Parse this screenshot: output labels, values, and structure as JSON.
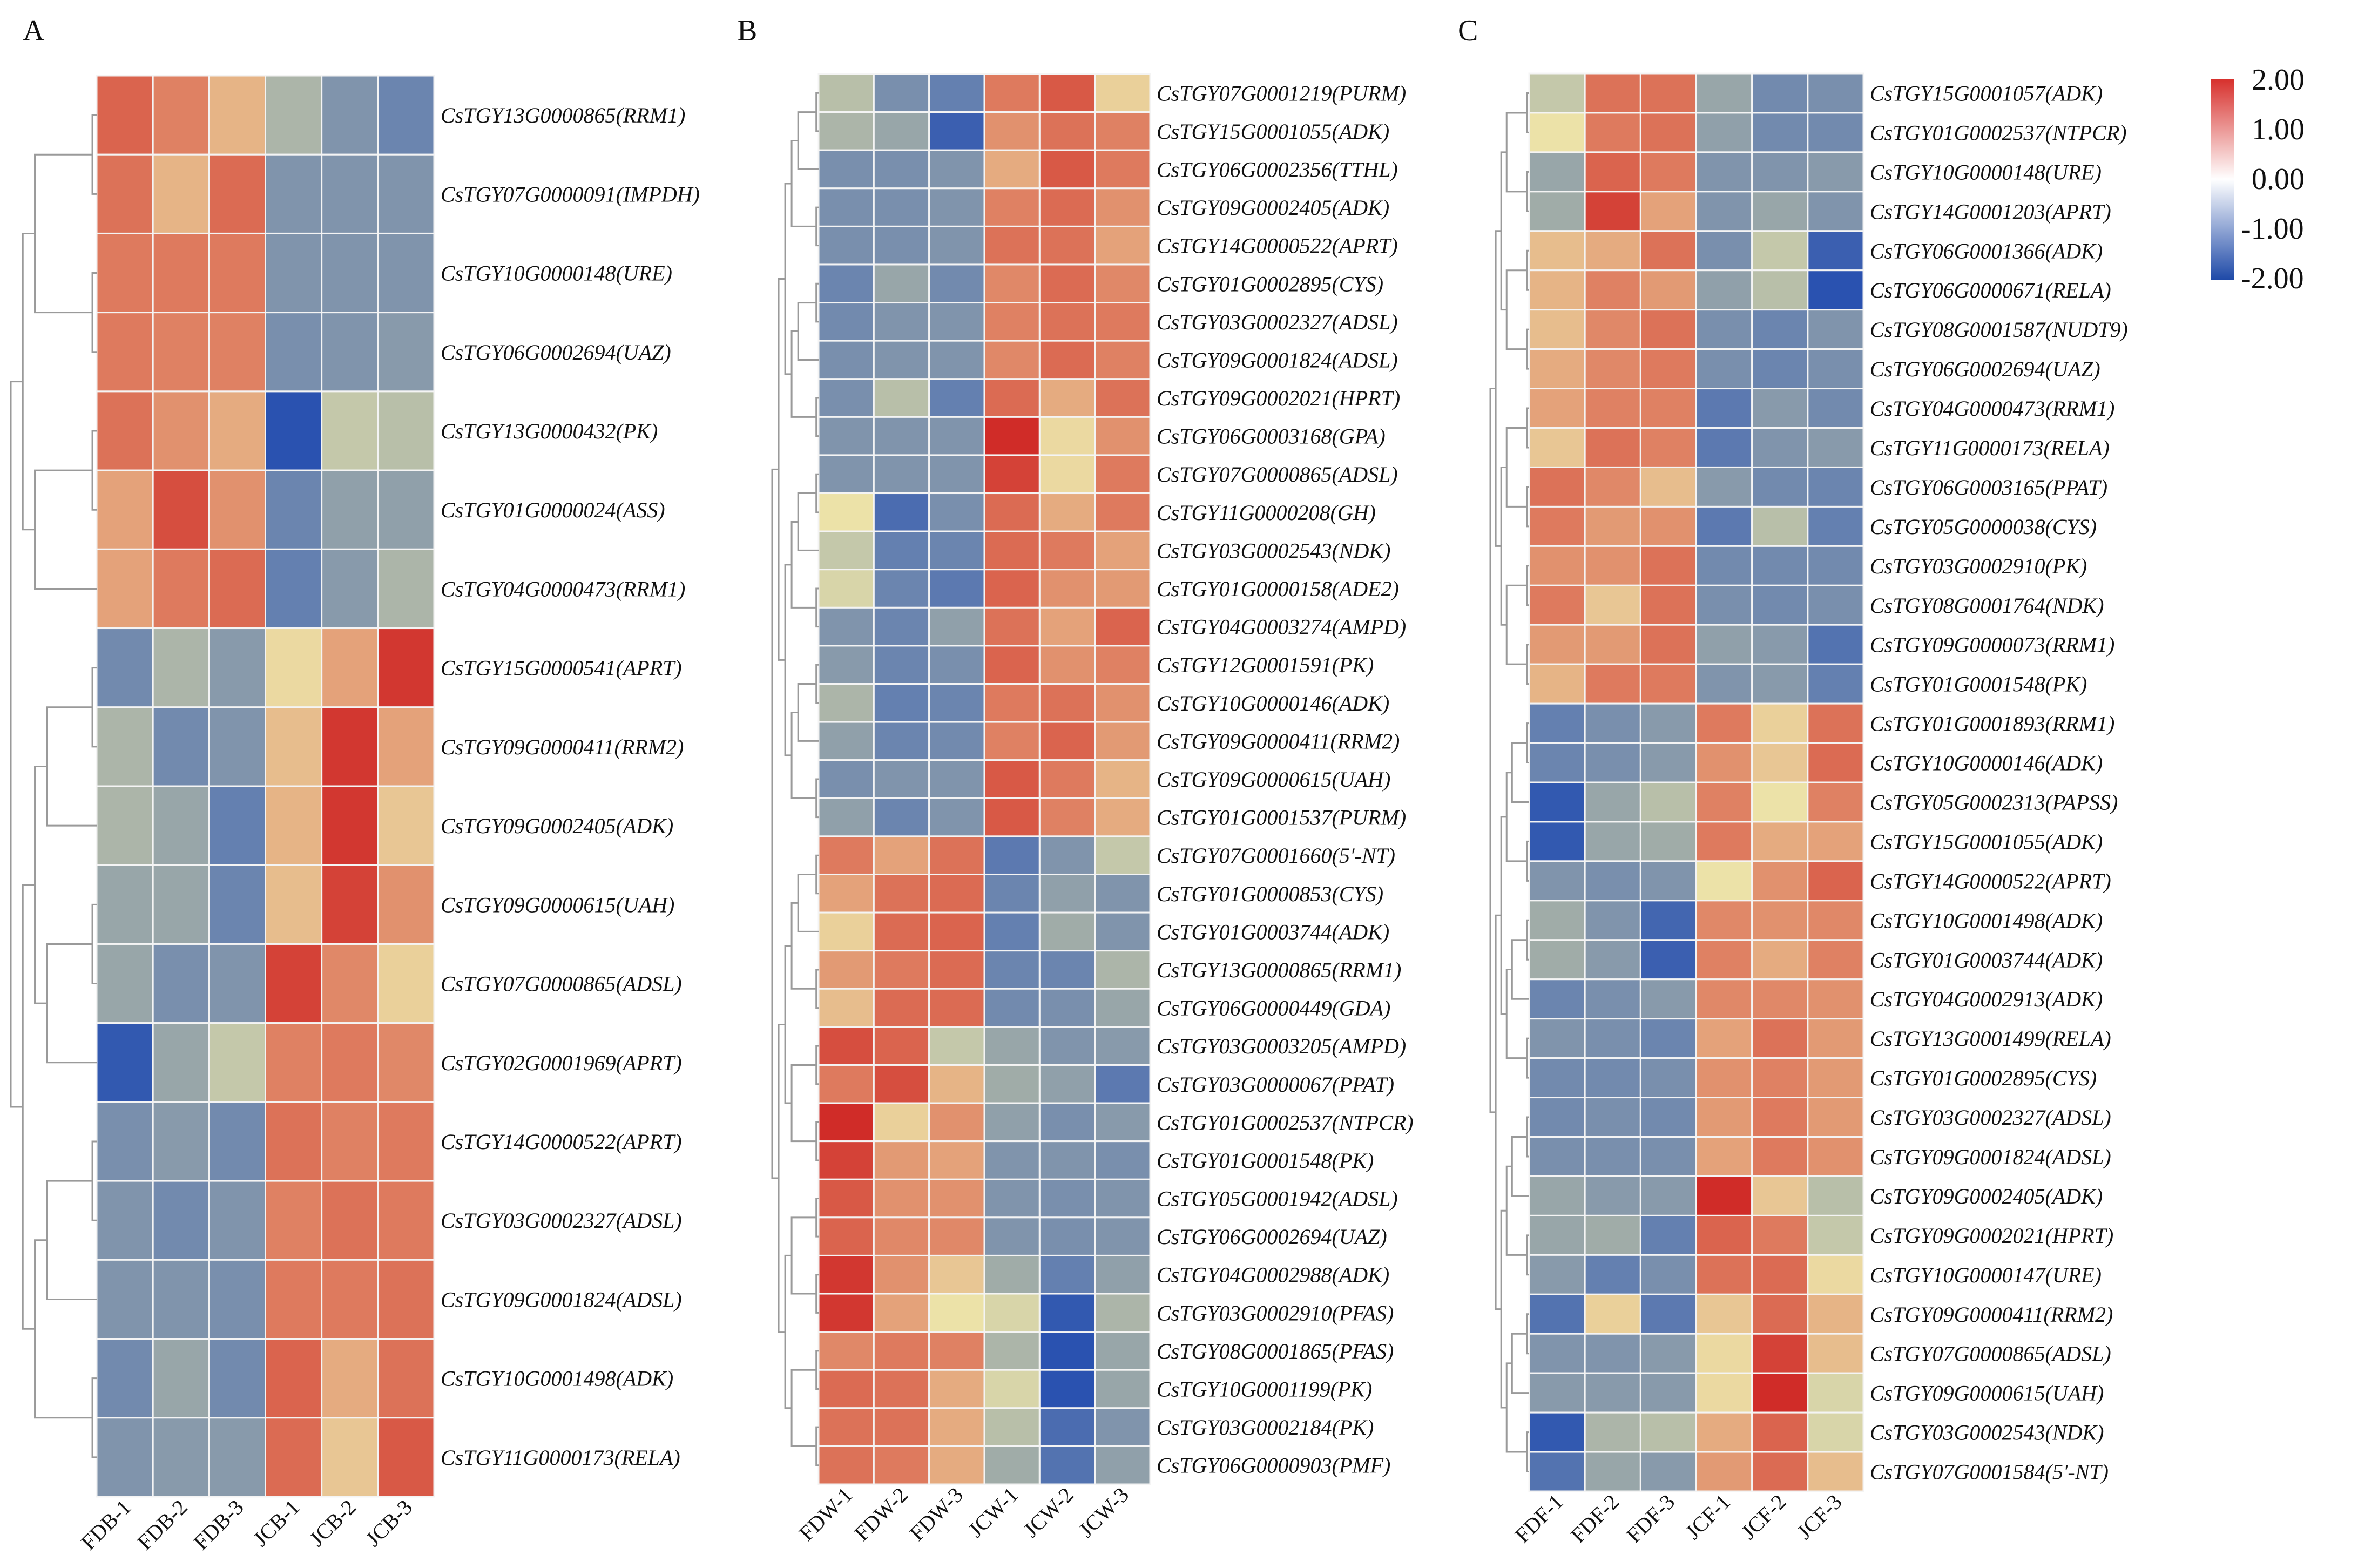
{
  "colorbar": {
    "min": -2,
    "max": 2,
    "ticks": [
      "2.00",
      "1.00",
      "0.00",
      "-1.00",
      "-2.00"
    ],
    "colors": {
      "high": "#d7302c",
      "mid": "#ffffff",
      "low": "#1f4aa8"
    }
  },
  "chart_data": [
    {
      "type": "heatmap",
      "panel": "A",
      "columns": [
        "FDB-1",
        "FDB-2",
        "FDB-3",
        "JCB-1",
        "JCB-2",
        "JCB-3"
      ],
      "rows": [
        "CsTGY13G0000865(RRM1)",
        "CsTGY07G0000091(IMPDH)",
        "CsTGY10G0000148(URE)",
        "CsTGY06G0002694(UAZ)",
        "CsTGY13G0000432(PK)",
        "CsTGY01G0000024(ASS)",
        "CsTGY04G0000473(RRM1)",
        "CsTGY15G0000541(APRT)",
        "CsTGY09G0000411(RRM2)",
        "CsTGY09G0002405(ADK)",
        "CsTGY09G0000615(UAH)",
        "CsTGY07G0000865(ADSL)",
        "CsTGY02G0001969(APRT)",
        "CsTGY14G0000522(APRT)",
        "CsTGY03G0002327(ADSL)",
        "CsTGY09G0001824(ADSL)",
        "CsTGY10G0001498(ADK)",
        "CsTGY11G0000173(RELA)"
      ],
      "split": 7,
      "values": [
        [
          1.5,
          1.1,
          0.5,
          -0.4,
          -0.9,
          -1.2
        ],
        [
          1.3,
          0.5,
          1.4,
          -0.9,
          -0.9,
          -0.9
        ],
        [
          1.2,
          1.2,
          1.2,
          -0.9,
          -0.9,
          -0.9
        ],
        [
          1.2,
          1.1,
          1.1,
          -1.0,
          -0.9,
          -0.8
        ],
        [
          1.3,
          0.9,
          0.6,
          -2.0,
          -0.2,
          -0.3
        ],
        [
          0.7,
          1.7,
          0.9,
          -1.2,
          -0.7,
          -0.7
        ],
        [
          0.7,
          1.2,
          1.4,
          -1.3,
          -0.8,
          -0.4
        ],
        [
          -1.1,
          -0.4,
          -0.8,
          0.1,
          0.7,
          1.9
        ],
        [
          -0.4,
          -1.1,
          -0.9,
          0.4,
          1.9,
          0.7
        ],
        [
          -0.4,
          -0.6,
          -1.3,
          0.5,
          1.9,
          0.3
        ],
        [
          -0.6,
          -0.6,
          -1.2,
          0.4,
          1.8,
          0.9
        ],
        [
          -0.6,
          -1.0,
          -0.9,
          1.8,
          1.0,
          0.2
        ],
        [
          -1.9,
          -0.6,
          -0.2,
          1.1,
          1.2,
          1.0
        ],
        [
          -1.0,
          -0.8,
          -1.1,
          1.3,
          1.1,
          1.2
        ],
        [
          -0.9,
          -1.1,
          -0.9,
          1.1,
          1.3,
          1.2
        ],
        [
          -0.9,
          -0.9,
          -1.0,
          1.2,
          1.2,
          1.3
        ],
        [
          -1.1,
          -0.6,
          -1.1,
          1.5,
          0.6,
          1.3
        ],
        [
          -0.9,
          -0.8,
          -0.8,
          1.4,
          0.3,
          1.6
        ]
      ]
    },
    {
      "type": "heatmap",
      "panel": "B",
      "columns": [
        "FDW-1",
        "FDW-2",
        "FDW-3",
        "JCW-1",
        "JCW-2",
        "JCW-3"
      ],
      "rows": [
        "CsTGY07G0001219(PURM)",
        "CsTGY15G0001055(ADK)",
        "CsTGY06G0002356(TTHL)",
        "CsTGY09G0002405(ADK)",
        "CsTGY14G0000522(APRT)",
        "CsTGY01G0002895(CYS)",
        "CsTGY03G0002327(ADSL)",
        "CsTGY09G0001824(ADSL)",
        "CsTGY09G0002021(HPRT)",
        "CsTGY06G0003168(GPA)",
        "CsTGY07G0000865(ADSL)",
        "CsTGY11G0000208(GH)",
        "CsTGY03G0002543(NDK)",
        "CsTGY01G0000158(ADE2)",
        "CsTGY04G0003274(AMPD)",
        "CsTGY12G0001591(PK)",
        "CsTGY10G0000146(ADK)",
        "CsTGY09G0000411(RRM2)",
        "CsTGY09G0000615(UAH)",
        "CsTGY01G0001537(PURM)",
        "CsTGY07G0001660(5'-NT)",
        "CsTGY01G0000853(CYS)",
        "CsTGY01G0003744(ADK)",
        "CsTGY13G0000865(RRM1)",
        "CsTGY06G0000449(GDA)",
        "CsTGY03G0003205(AMPD)",
        "CsTGY03G0000067(PPAT)",
        "CsTGY01G0002537(NTPCR)",
        "CsTGY01G0001548(PK)",
        "CsTGY05G0001942(ADSL)",
        "CsTGY06G0002694(UAZ)",
        "CsTGY04G0002988(ADK)",
        "CsTGY03G0002910(PFAS)",
        "CsTGY08G0001865(PFAS)",
        "CsTGY10G0001199(PK)",
        "CsTGY03G0002184(PK)",
        "CsTGY06G0000903(PMF)"
      ],
      "split": 20,
      "values": [
        [
          -0.3,
          -1.0,
          -1.3,
          1.2,
          1.6,
          0.2
        ],
        [
          -0.4,
          -0.6,
          -1.8,
          0.9,
          1.3,
          1.1
        ],
        [
          -1.0,
          -1.0,
          -0.9,
          0.6,
          1.6,
          1.2
        ],
        [
          -1.0,
          -1.0,
          -0.9,
          1.1,
          1.4,
          0.9
        ],
        [
          -1.0,
          -1.0,
          -0.9,
          1.3,
          1.3,
          0.7
        ],
        [
          -1.2,
          -0.6,
          -1.1,
          1.0,
          1.4,
          1.0
        ],
        [
          -1.1,
          -0.9,
          -0.9,
          1.1,
          1.3,
          1.2
        ],
        [
          -1.0,
          -0.9,
          -0.9,
          1.0,
          1.4,
          1.1
        ],
        [
          -1.0,
          -0.3,
          -1.3,
          1.4,
          0.6,
          1.3
        ],
        [
          -0.9,
          -0.9,
          -0.9,
          2.0,
          0.1,
          0.9
        ],
        [
          -0.9,
          -0.9,
          -0.9,
          1.8,
          0.1,
          1.2
        ],
        [
          0.0,
          -1.6,
          -1.0,
          1.4,
          0.6,
          1.2
        ],
        [
          -0.2,
          -1.3,
          -1.2,
          1.4,
          1.2,
          0.7
        ],
        [
          -0.1,
          -1.2,
          -1.4,
          1.5,
          0.9,
          0.8
        ],
        [
          -0.9,
          -1.2,
          -0.7,
          1.3,
          0.7,
          1.5
        ],
        [
          -0.8,
          -1.2,
          -1.0,
          1.5,
          0.9,
          1.1
        ],
        [
          -0.4,
          -1.3,
          -1.2,
          1.2,
          1.3,
          0.9
        ],
        [
          -0.7,
          -1.2,
          -1.1,
          1.1,
          1.5,
          0.8
        ],
        [
          -1.0,
          -0.9,
          -0.9,
          1.6,
          1.2,
          0.5
        ],
        [
          -0.7,
          -1.2,
          -0.9,
          1.6,
          1.1,
          0.6
        ],
        [
          1.2,
          0.7,
          1.3,
          -1.4,
          -0.9,
          -0.2
        ],
        [
          0.7,
          1.3,
          1.4,
          -1.2,
          -0.7,
          -0.9
        ],
        [
          0.2,
          1.4,
          1.5,
          -1.3,
          -0.5,
          -0.9
        ],
        [
          0.8,
          1.2,
          1.4,
          -1.2,
          -1.2,
          -0.4
        ],
        [
          0.4,
          1.4,
          1.4,
          -1.1,
          -1.0,
          -0.6
        ],
        [
          1.7,
          1.5,
          -0.2,
          -0.6,
          -0.9,
          -0.8
        ],
        [
          1.2,
          1.7,
          0.5,
          -0.5,
          -0.7,
          -1.4
        ],
        [
          2.0,
          0.2,
          0.9,
          -0.7,
          -1.0,
          -0.8
        ],
        [
          1.8,
          0.8,
          0.7,
          -0.9,
          -0.9,
          -1.0
        ],
        [
          1.6,
          0.9,
          0.9,
          -0.9,
          -1.0,
          -0.9
        ],
        [
          1.5,
          1.0,
          1.0,
          -0.9,
          -1.0,
          -0.9
        ],
        [
          1.9,
          0.9,
          0.3,
          -0.5,
          -1.3,
          -0.7
        ],
        [
          1.9,
          0.7,
          0.0,
          -0.1,
          -1.9,
          -0.4
        ],
        [
          1.0,
          1.2,
          1.1,
          -0.4,
          -2.0,
          -0.6
        ],
        [
          1.4,
          1.3,
          0.6,
          -0.1,
          -2.0,
          -0.6
        ],
        [
          1.3,
          1.3,
          0.6,
          -0.3,
          -1.6,
          -0.9
        ],
        [
          1.3,
          1.2,
          0.6,
          -0.5,
          -1.5,
          -0.7
        ]
      ]
    },
    {
      "type": "heatmap",
      "panel": "C",
      "columns": [
        "FDF-1",
        "FDF-2",
        "FDF-3",
        "JCF-1",
        "JCF-2",
        "JCF-3"
      ],
      "rows": [
        "CsTGY15G0001057(ADK)",
        "CsTGY01G0002537(NTPCR)",
        "CsTGY10G0000148(URE)",
        "CsTGY14G0001203(APRT)",
        "CsTGY06G0001366(ADK)",
        "CsTGY06G0000671(RELA)",
        "CsTGY08G0001587(NUDT9)",
        "CsTGY06G0002694(UAZ)",
        "CsTGY04G0000473(RRM1)",
        "CsTGY11G0000173(RELA)",
        "CsTGY06G0003165(PPAT)",
        "CsTGY05G0000038(CYS)",
        "CsTGY03G0002910(PK)",
        "CsTGY08G0001764(NDK)",
        "CsTGY09G0000073(RRM1)",
        "CsTGY01G0001548(PK)",
        "CsTGY01G0001893(RRM1)",
        "CsTGY10G0000146(ADK)",
        "CsTGY05G0002313(PAPSS)",
        "CsTGY15G0001055(ADK)",
        "CsTGY14G0000522(APRT)",
        "CsTGY10G0001498(ADK)",
        "CsTGY01G0003744(ADK)",
        "CsTGY04G0002913(ADK)",
        "CsTGY13G0001499(RELA)",
        "CsTGY01G0002895(CYS)",
        "CsTGY03G0002327(ADSL)",
        "CsTGY09G0001824(ADSL)",
        "CsTGY09G0002405(ADK)",
        "CsTGY09G0002021(HPRT)",
        "CsTGY10G0000147(URE)",
        "CsTGY09G0000411(RRM2)",
        "CsTGY07G0000865(ADSL)",
        "CsTGY09G0000615(UAH)",
        "CsTGY03G0002543(NDK)",
        "CsTGY07G0001584(5'-NT)"
      ],
      "split": 16,
      "values": [
        [
          -0.2,
          1.3,
          1.3,
          -0.6,
          -1.1,
          -1.0
        ],
        [
          0.0,
          1.2,
          1.3,
          -0.7,
          -1.1,
          -1.1
        ],
        [
          -0.6,
          1.5,
          1.2,
          -0.9,
          -0.9,
          -0.8
        ],
        [
          -0.5,
          1.8,
          0.7,
          -0.9,
          -0.6,
          -0.9
        ],
        [
          0.4,
          0.6,
          1.3,
          -1.0,
          -0.2,
          -1.8
        ],
        [
          0.5,
          1.1,
          0.8,
          -0.7,
          -0.3,
          -2.0
        ],
        [
          0.4,
          1.0,
          1.3,
          -1.0,
          -1.2,
          -0.9
        ],
        [
          0.6,
          1.0,
          1.2,
          -1.0,
          -1.2,
          -1.0
        ],
        [
          0.7,
          1.1,
          1.1,
          -1.4,
          -0.8,
          -1.1
        ],
        [
          0.3,
          1.3,
          1.1,
          -1.4,
          -0.9,
          -0.8
        ],
        [
          1.3,
          1.0,
          0.4,
          -0.8,
          -1.1,
          -1.2
        ],
        [
          1.2,
          0.8,
          0.9,
          -1.4,
          -0.3,
          -1.3
        ],
        [
          0.9,
          0.9,
          1.3,
          -1.1,
          -1.1,
          -1.1
        ],
        [
          1.2,
          0.3,
          1.3,
          -1.0,
          -1.1,
          -1.0
        ],
        [
          0.8,
          0.8,
          1.3,
          -0.7,
          -0.8,
          -1.5
        ],
        [
          0.5,
          1.2,
          1.2,
          -0.9,
          -0.8,
          -1.3
        ],
        [
          -1.3,
          -1.0,
          -0.8,
          1.2,
          0.2,
          1.3
        ],
        [
          -1.2,
          -1.0,
          -0.8,
          0.9,
          0.3,
          1.4
        ],
        [
          -1.9,
          -0.6,
          -0.3,
          1.1,
          0.0,
          1.1
        ],
        [
          -1.9,
          -0.6,
          -0.5,
          1.2,
          0.6,
          0.7
        ],
        [
          -0.9,
          -1.0,
          -0.9,
          0.0,
          0.9,
          1.5
        ],
        [
          -0.5,
          -0.9,
          -1.7,
          1.0,
          0.9,
          1.0
        ],
        [
          -0.5,
          -0.8,
          -1.8,
          1.1,
          0.6,
          1.1
        ],
        [
          -1.2,
          -1.0,
          -0.8,
          1.0,
          1.0,
          0.9
        ],
        [
          -0.9,
          -1.0,
          -1.2,
          0.7,
          1.3,
          0.8
        ],
        [
          -1.1,
          -1.1,
          -1.0,
          0.9,
          1.1,
          0.8
        ],
        [
          -1.1,
          -1.0,
          -1.1,
          0.8,
          1.2,
          0.8
        ],
        [
          -1.0,
          -1.0,
          -1.0,
          0.7,
          1.2,
          0.9
        ],
        [
          -0.6,
          -0.8,
          -0.8,
          2.0,
          0.3,
          -0.3
        ],
        [
          -0.6,
          -0.5,
          -1.3,
          1.5,
          1.2,
          -0.2
        ],
        [
          -0.8,
          -1.3,
          -1.0,
          1.3,
          1.4,
          0.1
        ],
        [
          -1.5,
          0.2,
          -1.4,
          0.3,
          1.4,
          0.5
        ],
        [
          -0.9,
          -0.9,
          -0.8,
          0.1,
          1.8,
          0.4
        ],
        [
          -0.8,
          -0.8,
          -0.8,
          0.1,
          2.0,
          -0.1
        ],
        [
          -1.9,
          -0.4,
          -0.3,
          0.6,
          1.5,
          -0.1
        ],
        [
          -1.5,
          -0.6,
          -0.8,
          0.8,
          1.4,
          0.4
        ]
      ]
    }
  ]
}
